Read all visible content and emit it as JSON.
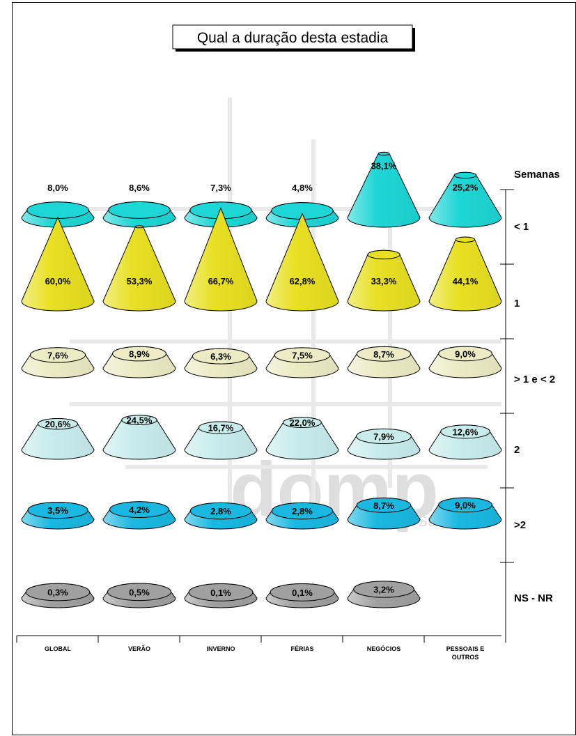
{
  "chart_data": {
    "type": "3d-cone",
    "title": "Qual a duração desta estadia",
    "legend_title": "Semanas",
    "categories": [
      "GLOBAL",
      "VERÃO",
      "INVERNO",
      "FÉRIAS",
      "NEGÓCIOS",
      "PESSOAIS E OUTROS"
    ],
    "series": [
      {
        "name": "< 1",
        "values": [
          8.0,
          8.6,
          7.3,
          4.8,
          38.1,
          25.2
        ],
        "labels": [
          "8,0%",
          "8,6%",
          "7,3%",
          "4,8%",
          "38,1%",
          "25,2%"
        ],
        "color": "#1ed6d6"
      },
      {
        "name": "1",
        "values": [
          60.0,
          53.3,
          66.7,
          62.8,
          33.3,
          44.1
        ],
        "labels": [
          "60,0%",
          "53,3%",
          "66,7%",
          "62,8%",
          "33,3%",
          "44,1%"
        ],
        "color": "#e8e022"
      },
      {
        "name": "> 1 e < 2",
        "values": [
          7.6,
          8.9,
          6.3,
          7.5,
          8.7,
          9.0
        ],
        "labels": [
          "7,6%",
          "8,9%",
          "6,3%",
          "7,5%",
          "8,7%",
          "9,0%"
        ],
        "color": "#ecebc4"
      },
      {
        "name": "2",
        "values": [
          20.6,
          24.5,
          16.7,
          22.0,
          7.9,
          12.6
        ],
        "labels": [
          "20,6%",
          "24,5%",
          "16,7%",
          "22,0%",
          "7,9%",
          "12,6%"
        ],
        "color": "#c8ecec"
      },
      {
        "name": ">2",
        "values": [
          3.5,
          4.2,
          2.8,
          2.8,
          8.7,
          9.0
        ],
        "labels": [
          "3,5%",
          "4,2%",
          "2,8%",
          "2,8%",
          "8,7%",
          "9,0%"
        ],
        "color": "#1ab8e0"
      },
      {
        "name": "NS - NR",
        "values": [
          0.3,
          0.5,
          0.1,
          0.1,
          3.2,
          null
        ],
        "labels": [
          "0,3%",
          "0,5%",
          "0,1%",
          "0,1%",
          "3,2%",
          ""
        ],
        "color": "#a0a0a0"
      }
    ]
  },
  "watermark": {
    "name": "domp",
    "sub": "sa"
  }
}
